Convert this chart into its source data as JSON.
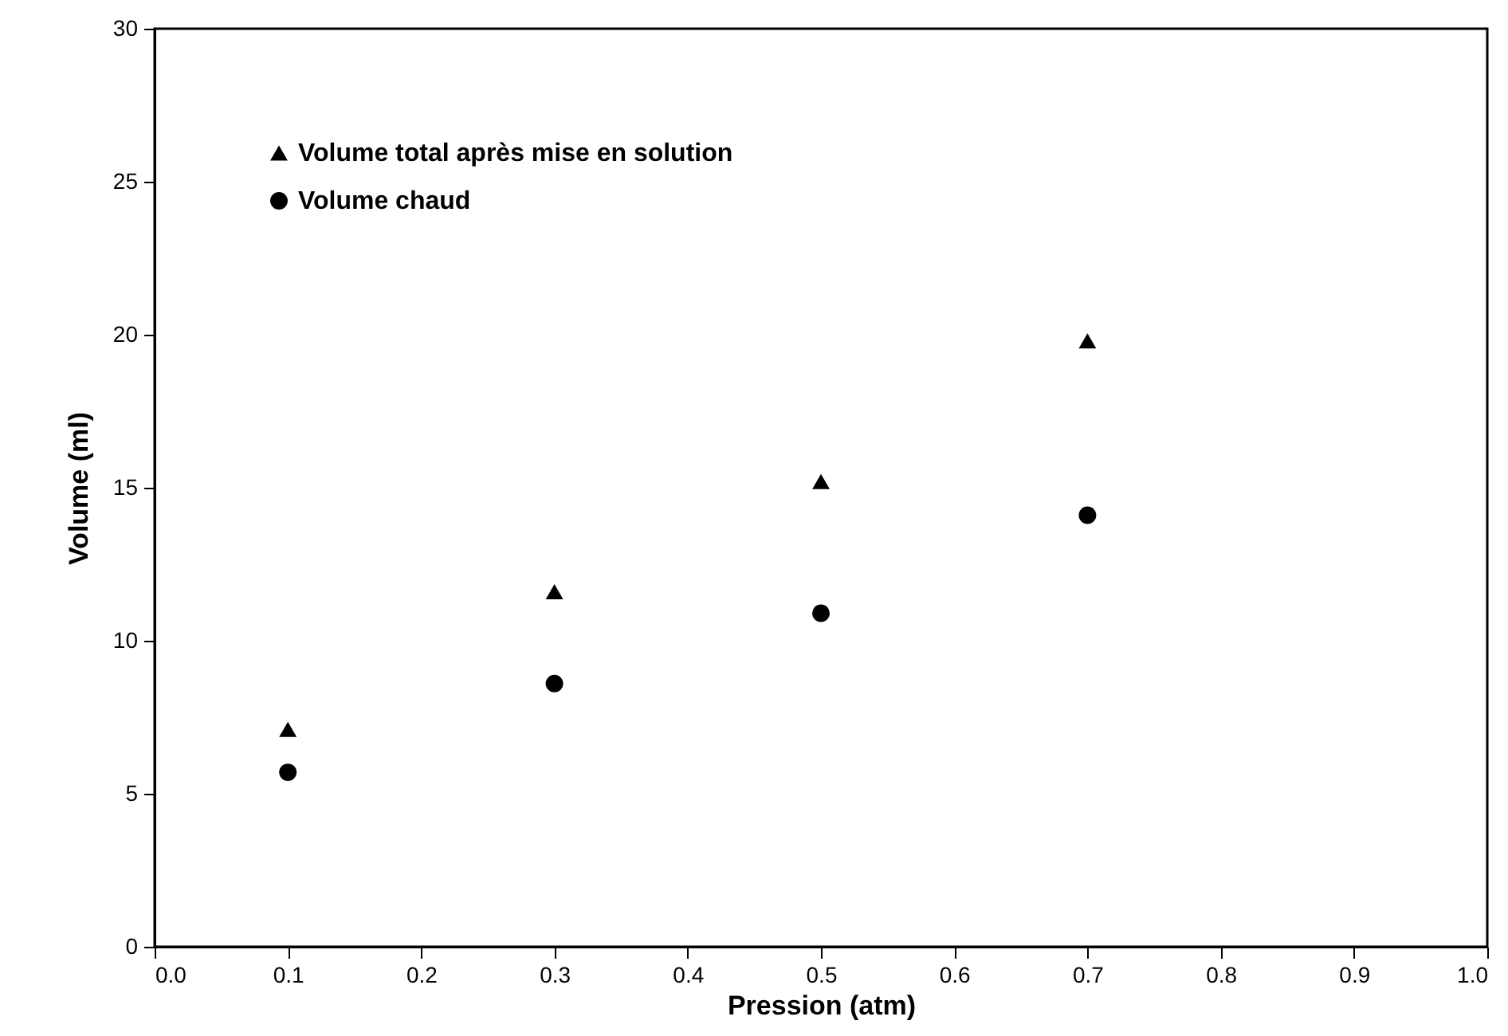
{
  "chart_data": {
    "type": "scatter",
    "xlabel": "Pression (atm)",
    "ylabel": "Volume (ml)",
    "x": [
      0.1,
      0.3,
      0.5,
      0.7
    ],
    "series": [
      {
        "name": "Volume total après mise en solution",
        "color": "#000000",
        "marker": "triangle",
        "values": [
          7.1,
          11.6,
          15.2,
          19.8
        ]
      },
      {
        "name": "Volume chaud",
        "color": "#000000",
        "marker": "circle",
        "values": [
          5.7,
          8.6,
          10.9,
          14.1
        ]
      }
    ],
    "xlim": [
      0.0,
      1.0
    ],
    "xticks": [
      {
        "value": 0,
        "label": "0.0"
      },
      0.1,
      0.2,
      0.3,
      0.4,
      0.5,
      0.6,
      0.7,
      0.8,
      0.9,
      {
        "value": 1,
        "label": "1.0"
      }
    ],
    "ylim": [
      0,
      30
    ],
    "yticks": [
      0,
      5,
      10,
      15,
      20,
      25,
      30
    ],
    "grid": false,
    "legend": "top left"
  }
}
